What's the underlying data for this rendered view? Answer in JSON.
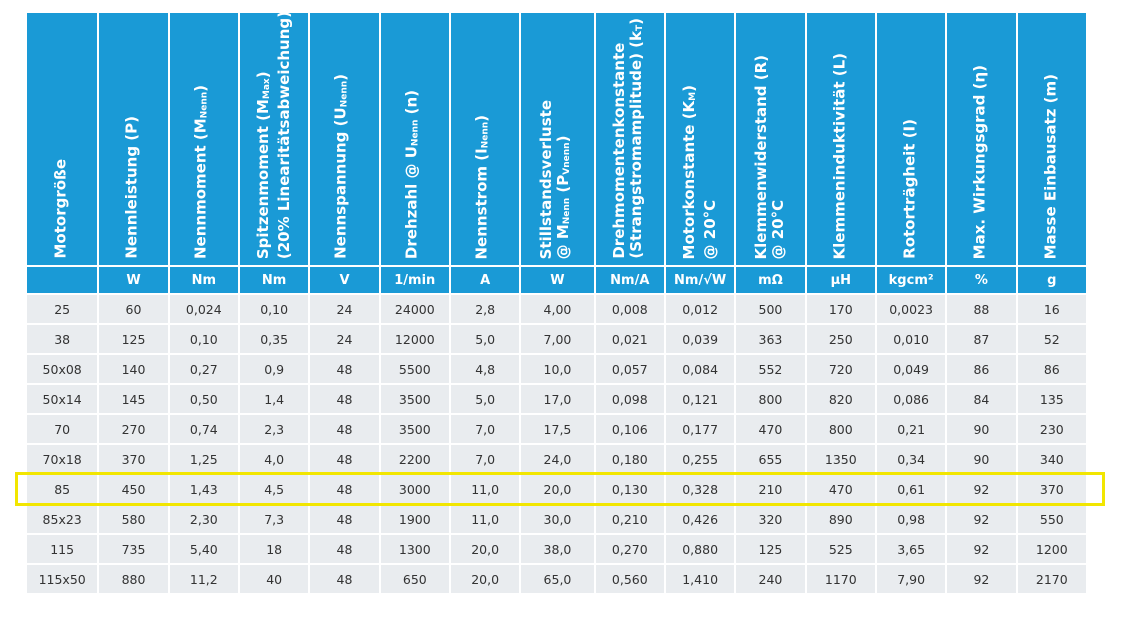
{
  "table": {
    "headers": [
      "Motorgröße",
      "Nennleistung (P)",
      "Nennmoment (M_Nenn)",
      "Spitzenmoment (M_Max) (20% Linearitätsabweichung)",
      "Nennspannung (U_Nenn)",
      "Drehzahl @ U_Nenn (n)",
      "Nennstrom (I_Nenn)",
      "Stillstandsverluste @ M_Nenn (P_Vnenn)",
      "Drehmomentenkonstante (Strangstromamplitude) (k_T)",
      "Motorkonstante (K_M) @ 20°C",
      "Klemmenwiderstand (R) @ 20°C",
      "Klemmeninduktivität (L)",
      "Rotorträgheit (I)",
      "Max. Wirkungsgrad (η)",
      "Masse Einbausatz (m)"
    ],
    "units": [
      "",
      "W",
      "Nm",
      "Nm",
      "V",
      "1/min",
      "A",
      "W",
      "Nm/A",
      "Nm/√W",
      "mΩ",
      "µH",
      "kgcm²",
      "%",
      "g"
    ],
    "rows": [
      [
        "25",
        "60",
        "0,024",
        "0,10",
        "24",
        "24000",
        "2,8",
        "4,00",
        "0,008",
        "0,012",
        "500",
        "170",
        "0,0023",
        "88",
        "16"
      ],
      [
        "38",
        "125",
        "0,10",
        "0,35",
        "24",
        "12000",
        "5,0",
        "7,00",
        "0,021",
        "0,039",
        "363",
        "250",
        "0,010",
        "87",
        "52"
      ],
      [
        "50x08",
        "140",
        "0,27",
        "0,9",
        "48",
        "5500",
        "4,8",
        "10,0",
        "0,057",
        "0,084",
        "552",
        "720",
        "0,049",
        "86",
        "86"
      ],
      [
        "50x14",
        "145",
        "0,50",
        "1,4",
        "48",
        "3500",
        "5,0",
        "17,0",
        "0,098",
        "0,121",
        "800",
        "820",
        "0,086",
        "84",
        "135"
      ],
      [
        "70",
        "270",
        "0,74",
        "2,3",
        "48",
        "3500",
        "7,0",
        "17,5",
        "0,106",
        "0,177",
        "470",
        "800",
        "0,21",
        "90",
        "230"
      ],
      [
        "70x18",
        "370",
        "1,25",
        "4,0",
        "48",
        "2200",
        "7,0",
        "24,0",
        "0,180",
        "0,255",
        "655",
        "1350",
        "0,34",
        "90",
        "340"
      ],
      [
        "85",
        "450",
        "1,43",
        "4,5",
        "48",
        "3000",
        "11,0",
        "20,0",
        "0,130",
        "0,328",
        "210",
        "470",
        "0,61",
        "92",
        "370"
      ],
      [
        "85x23",
        "580",
        "2,30",
        "7,3",
        "48",
        "1900",
        "11,0",
        "30,0",
        "0,210",
        "0,426",
        "320",
        "890",
        "0,98",
        "92",
        "550"
      ],
      [
        "115",
        "735",
        "5,40",
        "18",
        "48",
        "1300",
        "20,0",
        "38,0",
        "0,270",
        "0,880",
        "125",
        "525",
        "3,65",
        "92",
        "1200"
      ],
      [
        "115x50",
        "880",
        "11,2",
        "40",
        "48",
        "650",
        "20,0",
        "65,0",
        "0,560",
        "1,410",
        "240",
        "1170",
        "7,90",
        "92",
        "2170"
      ]
    ],
    "highlighted_row": "85",
    "highlight_color": "#f2e600",
    "header_color": "#1a9ad6"
  }
}
